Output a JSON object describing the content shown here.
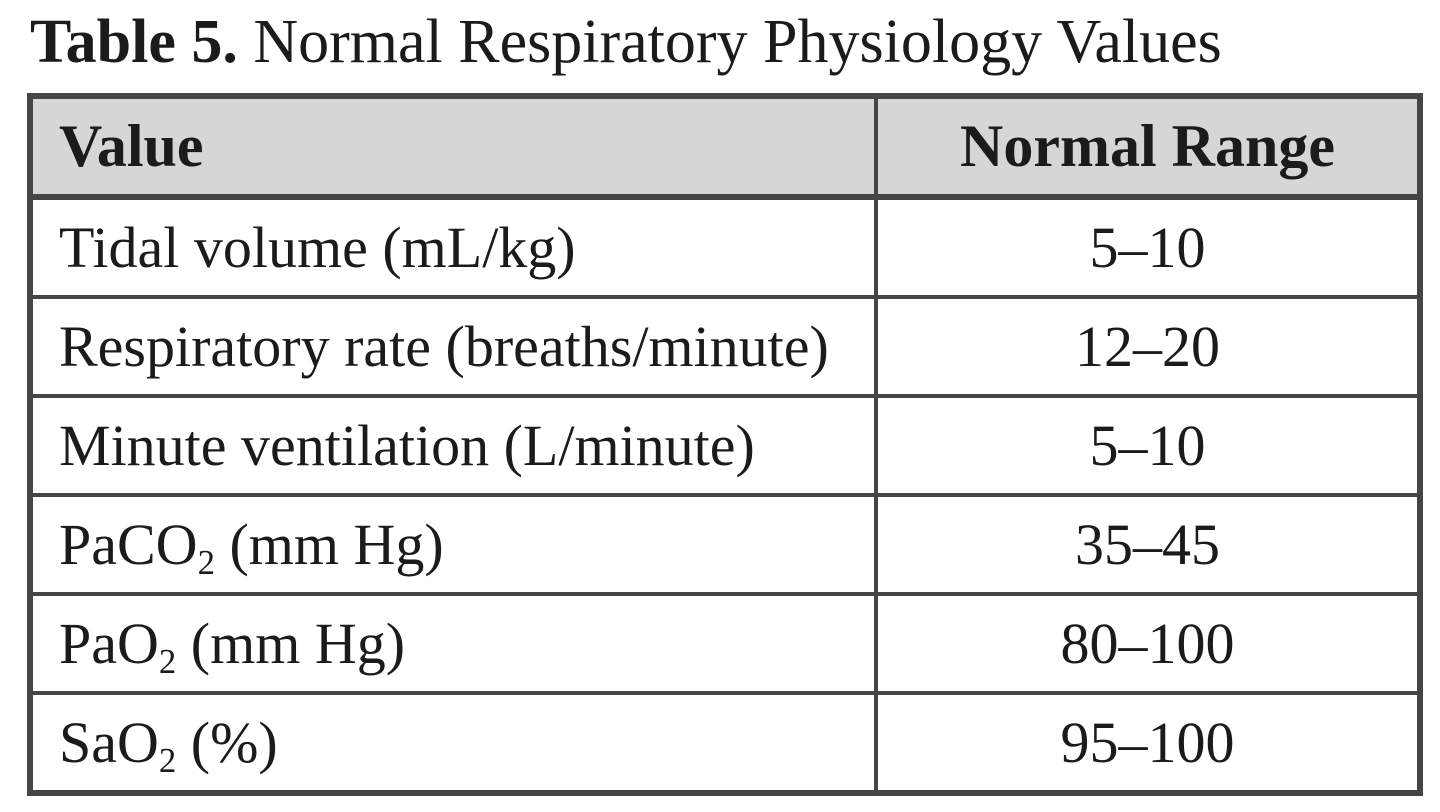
{
  "caption": {
    "number": "Table 5.",
    "title": " Normal Respiratory Physiology Values"
  },
  "colors": {
    "header_bg": "#d6d6d6",
    "border": "#454545",
    "text": "#1b1b1b",
    "page_bg": "#ffffff"
  },
  "table": {
    "header": {
      "col1": "Value",
      "col2": "Normal Range"
    },
    "rows": [
      {
        "label": {
          "pre": "Tidal volume (mL/kg)",
          "sub": "",
          "post": ""
        },
        "range": "5–10"
      },
      {
        "label": {
          "pre": "Respiratory rate (breaths/minute)",
          "sub": "",
          "post": ""
        },
        "range": "12–20"
      },
      {
        "label": {
          "pre": "Minute ventilation (L/minute)",
          "sub": "",
          "post": ""
        },
        "range": "5–10"
      },
      {
        "label": {
          "pre": "PaCO",
          "sub": "2",
          "post": " (mm Hg)"
        },
        "range": "35–45"
      },
      {
        "label": {
          "pre": "PaO",
          "sub": "2",
          "post": " (mm Hg)"
        },
        "range": "80–100"
      },
      {
        "label": {
          "pre": "SaO",
          "sub": "2",
          "post": " (%)"
        },
        "range": "95–100"
      }
    ]
  }
}
